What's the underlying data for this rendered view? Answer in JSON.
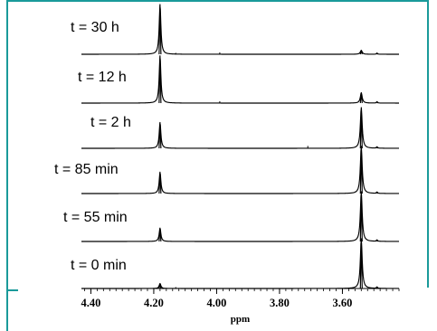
{
  "chart_data": {
    "type": "line",
    "xlabel": "ppm",
    "x_reversed": true,
    "xlim": [
      4.43,
      3.42
    ],
    "ticks": [
      4.4,
      4.2,
      4.0,
      3.8,
      3.6
    ],
    "tick_labels": [
      "4.40",
      "4.20",
      "4.00",
      "3.80",
      "3.60"
    ],
    "frame_color": "#1a9a9a",
    "stacked": true,
    "panels": [
      {
        "label": "t = 30 h",
        "baseline_noise": [
          {
            "x": 4.13,
            "h": 0.01
          },
          {
            "x": 3.99,
            "h": 0.02
          }
        ],
        "peaks": [
          {
            "x": 4.18,
            "h": 1.0,
            "w": 0.0032
          },
          {
            "x": 3.54,
            "h": 0.08,
            "w": 0.0035
          },
          {
            "x": 3.49,
            "h": 0.025,
            "w": 0.002
          }
        ]
      },
      {
        "label": "t = 12 h",
        "baseline_noise": [
          {
            "x": 3.99,
            "h": 0.02
          }
        ],
        "peaks": [
          {
            "x": 4.18,
            "h": 0.95,
            "w": 0.0032
          },
          {
            "x": 3.54,
            "h": 0.21,
            "w": 0.0035
          },
          {
            "x": 3.49,
            "h": 0.03,
            "w": 0.002
          }
        ]
      },
      {
        "label": "t = 2 h",
        "baseline_noise": [
          {
            "x": 3.71,
            "h": 0.03
          }
        ],
        "peaks": [
          {
            "x": 4.18,
            "h": 0.52,
            "w": 0.0032
          },
          {
            "x": 3.54,
            "h": 0.82,
            "w": 0.0035
          },
          {
            "x": 3.49,
            "h": 0.03,
            "w": 0.002
          }
        ]
      },
      {
        "label": "t = 85 min",
        "baseline_noise": [],
        "peaks": [
          {
            "x": 4.18,
            "h": 0.43,
            "w": 0.0032
          },
          {
            "x": 3.54,
            "h": 0.95,
            "w": 0.0035
          },
          {
            "x": 3.49,
            "h": 0.03,
            "w": 0.002
          }
        ]
      },
      {
        "label": "t = 55 min",
        "baseline_noise": [],
        "peaks": [
          {
            "x": 4.18,
            "h": 0.27,
            "w": 0.0032
          },
          {
            "x": 3.54,
            "h": 1.0,
            "w": 0.0035
          },
          {
            "x": 3.49,
            "h": 0.03,
            "w": 0.002
          }
        ]
      },
      {
        "label": "t = 0 min",
        "baseline_noise": [
          {
            "x": 4.13,
            "h": 0.01
          }
        ],
        "peaks": [
          {
            "x": 4.18,
            "h": 0.1,
            "w": 0.0032
          },
          {
            "x": 3.54,
            "h": 1.0,
            "w": 0.0035
          },
          {
            "x": 3.49,
            "h": 0.03,
            "w": 0.002
          }
        ]
      }
    ]
  }
}
